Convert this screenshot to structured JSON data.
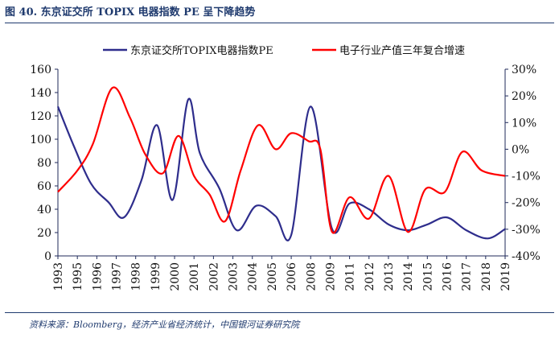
{
  "figure": {
    "title": "图 40. 东京证交所 TOPIX 电器指数 PE 呈下降趋势",
    "source": "资料来源：Bloomberg，经济产业省经济统计，中国银河证券研究院"
  },
  "chart_data": {
    "type": "line",
    "x": [
      "1993",
      "1995",
      "1996",
      "1997",
      "1998",
      "1999",
      "2000",
      "2001",
      "2002",
      "2003",
      "2004",
      "2005",
      "2006",
      "2008",
      "2009",
      "2011",
      "2012",
      "2013",
      "2014",
      "2015",
      "2016",
      "2017",
      "2018",
      "2019"
    ],
    "series": [
      {
        "name": "东京证交所TOPIX电器指数PE",
        "axis": "left",
        "color": "#2e2d8c",
        "points": [
          [
            0,
            128
          ],
          [
            0.8,
            95
          ],
          [
            1.7,
            62
          ],
          [
            2.6,
            46
          ],
          [
            3.4,
            33
          ],
          [
            4.3,
            65
          ],
          [
            5.1,
            112
          ],
          [
            5.9,
            48
          ],
          [
            6.7,
            134
          ],
          [
            7.3,
            88
          ],
          [
            8.3,
            58
          ],
          [
            9.2,
            22
          ],
          [
            10.2,
            43
          ],
          [
            11.2,
            34
          ],
          [
            12.0,
            18
          ],
          [
            13.0,
            128
          ],
          [
            14.1,
            23
          ],
          [
            15.0,
            45
          ],
          [
            16.0,
            40
          ],
          [
            17.0,
            27
          ],
          [
            18.0,
            22
          ],
          [
            19.0,
            27
          ],
          [
            20.0,
            33
          ],
          [
            21.0,
            22
          ],
          [
            22.1,
            15
          ],
          [
            23.0,
            23
          ]
        ]
      },
      {
        "name": "电子行业产值三年复合增速",
        "axis": "right",
        "color": "#ff0000",
        "points": [
          [
            0,
            -16
          ],
          [
            1.0,
            -8
          ],
          [
            1.8,
            2
          ],
          [
            2.8,
            23
          ],
          [
            3.7,
            12
          ],
          [
            4.5,
            -2
          ],
          [
            5.4,
            -9
          ],
          [
            6.2,
            5
          ],
          [
            7.0,
            -10
          ],
          [
            7.8,
            -17
          ],
          [
            8.6,
            -27
          ],
          [
            9.4,
            -8
          ],
          [
            10.3,
            9
          ],
          [
            11.2,
            0
          ],
          [
            12.0,
            6
          ],
          [
            12.9,
            3
          ],
          [
            13.5,
            0
          ],
          [
            14.1,
            -31
          ],
          [
            15.0,
            -18
          ],
          [
            16.0,
            -26
          ],
          [
            17.0,
            -10
          ],
          [
            18.0,
            -31
          ],
          [
            18.9,
            -15
          ],
          [
            19.9,
            -16
          ],
          [
            20.8,
            -1
          ],
          [
            21.8,
            -8
          ],
          [
            23.0,
            -10
          ]
        ]
      }
    ],
    "left_axis": {
      "min": 0,
      "max": 160,
      "ticks": [
        0,
        20,
        40,
        60,
        80,
        100,
        120,
        140,
        160
      ]
    },
    "right_axis": {
      "min": -40,
      "max": 30,
      "ticks": [
        "-40%",
        "-30%",
        "-20%",
        "-10%",
        "0%",
        "10%",
        "20%",
        "30%"
      ],
      "tick_values": [
        -40,
        -30,
        -20,
        -10,
        0,
        10,
        20,
        30
      ]
    },
    "legend_position": "top",
    "grid": false
  }
}
